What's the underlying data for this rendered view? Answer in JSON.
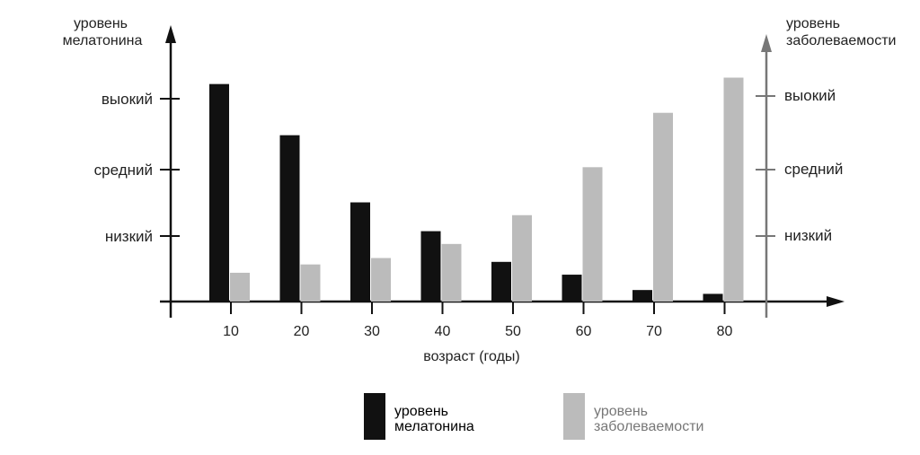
{
  "chart_data": {
    "type": "bar",
    "categories": [
      "10",
      "20",
      "30",
      "40",
      "50",
      "60",
      "70",
      "80"
    ],
    "series": [
      {
        "name": "уровень мелатонина",
        "color": "#111111",
        "values": [
          3.4,
          2.6,
          1.55,
          1.1,
          0.62,
          0.42,
          0.18,
          0.12
        ]
      },
      {
        "name": "уровень заболеваемости",
        "color": "#bbbbbb",
        "values": [
          0.45,
          0.58,
          0.68,
          0.9,
          1.35,
          2.1,
          2.95,
          3.5
        ]
      }
    ],
    "xlabel": "возраст (годы)",
    "ylabel_left": [
      "уровень",
      "мелатонина"
    ],
    "ylabel_right": [
      "уровень",
      "заболеваемости"
    ],
    "yticks_left": [
      {
        "value": 1,
        "label": "низкий"
      },
      {
        "value": 2,
        "label": "средний"
      },
      {
        "value": 3,
        "label": "выокий"
      }
    ],
    "yticks_right": [
      {
        "value": 1,
        "label": "низкий"
      },
      {
        "value": 2,
        "label": "средний"
      },
      {
        "value": 3,
        "label": "выокий"
      }
    ],
    "ylim": [
      0,
      3.9
    ],
    "grid": false,
    "legend_position": "bottom"
  },
  "legend": [
    {
      "color": "#111111",
      "lines": [
        "уровень",
        "мелатонина"
      ]
    },
    {
      "color": "#bbbbbb",
      "lines": [
        "уровень",
        "заболеваемости"
      ]
    }
  ]
}
